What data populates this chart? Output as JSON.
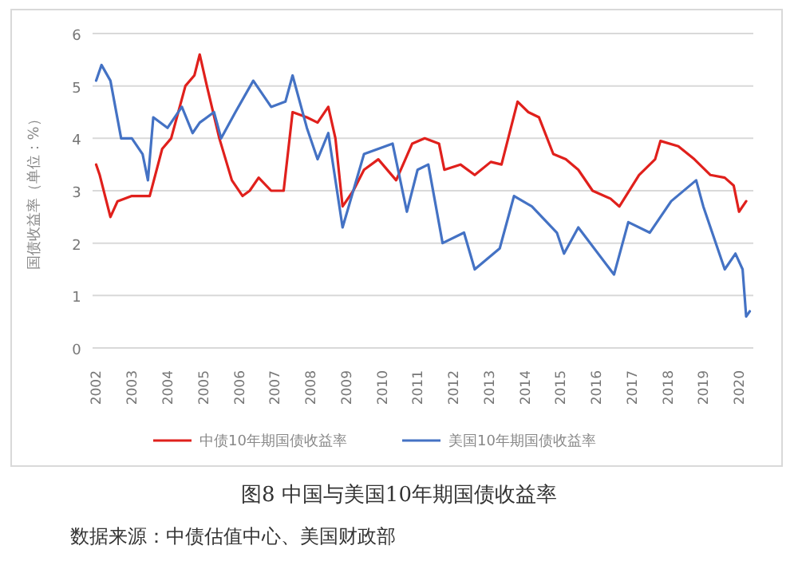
{
  "chart_data": {
    "type": "line",
    "title": "图8 中国与美国10年期国债收益率",
    "ylabel": "国债收益率（单位：%）",
    "annotations": [
      "数据来源：中债估值中心、美国财政部"
    ],
    "xlim": [
      2001.9,
      2020.4
    ],
    "xticks": [
      {
        "value": 2002,
        "label": "2002"
      },
      {
        "value": 2003,
        "label": "2003"
      },
      {
        "value": 2004,
        "label": "2004"
      },
      {
        "value": 2005,
        "label": "2005"
      },
      {
        "value": 2006,
        "label": "2006"
      },
      {
        "value": 2007,
        "label": "2007"
      },
      {
        "value": 2008,
        "label": "2008"
      },
      {
        "value": 2009,
        "label": "2009"
      },
      {
        "value": 2010,
        "label": "2010"
      },
      {
        "value": 2011,
        "label": "2011"
      },
      {
        "value": 2012,
        "label": "2012"
      },
      {
        "value": 2013,
        "label": "2013"
      },
      {
        "value": 2014,
        "label": "2014"
      },
      {
        "value": 2015,
        "label": "2015"
      },
      {
        "value": 2016,
        "label": "2016"
      },
      {
        "value": 2017,
        "label": "2017"
      },
      {
        "value": 2018,
        "label": "2018"
      },
      {
        "value": 2019,
        "label": "2019"
      },
      {
        "value": 2020,
        "label": "2020"
      }
    ],
    "ylim": [
      0,
      6
    ],
    "yticks": [
      0,
      1,
      2,
      3,
      4,
      5,
      6
    ],
    "grid": "y",
    "legend": "bottom",
    "marker": "none",
    "line_style": "solid",
    "series": [
      {
        "name": "中债10年期国债收益率",
        "color": "#e0201c",
        "x": [
          2002.0,
          2002.1,
          2002.25,
          2002.4,
          2002.6,
          2003.0,
          2003.5,
          2003.85,
          2004.1,
          2004.5,
          2004.75,
          2004.9,
          2005.1,
          2005.45,
          2005.8,
          2006.1,
          2006.3,
          2006.55,
          2006.9,
          2007.25,
          2007.35,
          2007.5,
          2007.9,
          2008.2,
          2008.5,
          2008.7,
          2008.9,
          2009.2,
          2009.5,
          2009.9,
          2010.4,
          2010.85,
          2011.2,
          2011.6,
          2011.75,
          2012.2,
          2012.6,
          2013.05,
          2013.35,
          2013.8,
          2014.1,
          2014.4,
          2014.8,
          2015.15,
          2015.5,
          2015.9,
          2016.4,
          2016.65,
          2017.2,
          2017.65,
          2017.8,
          2018.3,
          2018.75,
          2019.2,
          2019.6,
          2019.85,
          2020.0,
          2020.2
        ],
        "values": [
          3.5,
          3.3,
          2.9,
          2.5,
          2.8,
          2.9,
          2.9,
          3.8,
          4.0,
          5.0,
          5.2,
          5.6,
          5.0,
          4.0,
          3.2,
          2.9,
          3.0,
          3.25,
          3.0,
          3.0,
          3.6,
          4.5,
          4.4,
          4.3,
          4.6,
          4.0,
          2.7,
          3.0,
          3.4,
          3.6,
          3.2,
          3.9,
          4.0,
          3.9,
          3.4,
          3.5,
          3.3,
          3.55,
          3.5,
          4.7,
          4.5,
          4.4,
          3.7,
          3.6,
          3.4,
          3.0,
          2.85,
          2.7,
          3.3,
          3.6,
          3.95,
          3.85,
          3.6,
          3.3,
          3.25,
          3.1,
          2.6,
          2.8
        ]
      },
      {
        "name": "美国10年期国债收益率",
        "color": "#4472c4",
        "x": [
          2002.0,
          2002.15,
          2002.4,
          2002.7,
          2003.0,
          2003.3,
          2003.45,
          2003.6,
          2004.0,
          2004.4,
          2004.7,
          2004.9,
          2005.3,
          2005.5,
          2005.9,
          2006.4,
          2006.9,
          2007.3,
          2007.5,
          2007.9,
          2008.2,
          2008.5,
          2008.9,
          2009.5,
          2010.3,
          2010.7,
          2011.0,
          2011.3,
          2011.7,
          2012.3,
          2012.6,
          2013.3,
          2013.7,
          2014.2,
          2014.9,
          2015.1,
          2015.5,
          2016.5,
          2016.9,
          2017.5,
          2018.1,
          2018.8,
          2019.0,
          2019.6,
          2019.9,
          2020.1,
          2020.2,
          2020.3
        ],
        "values": [
          5.1,
          5.4,
          5.1,
          4.0,
          4.0,
          3.7,
          3.2,
          4.4,
          4.2,
          4.6,
          4.1,
          4.3,
          4.5,
          4.0,
          4.5,
          5.1,
          4.6,
          4.7,
          5.2,
          4.2,
          3.6,
          4.1,
          2.3,
          3.7,
          3.9,
          2.6,
          3.4,
          3.5,
          2.0,
          2.2,
          1.5,
          1.9,
          2.9,
          2.7,
          2.2,
          1.8,
          2.3,
          1.4,
          2.4,
          2.2,
          2.8,
          3.2,
          2.7,
          1.5,
          1.8,
          1.5,
          0.6,
          0.7
        ]
      }
    ]
  }
}
